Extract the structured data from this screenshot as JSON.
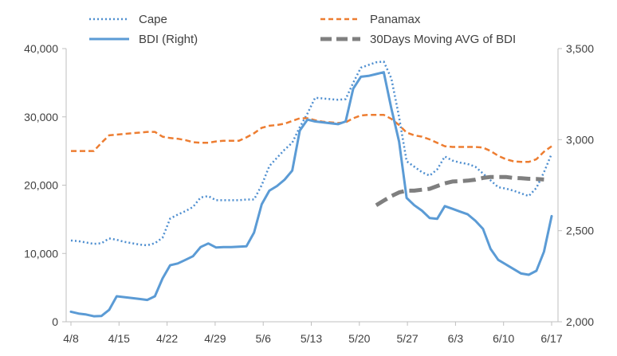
{
  "chart_data": {
    "type": "line",
    "title": "",
    "x_ticks": [
      "4/8",
      "4/15",
      "4/22",
      "4/29",
      "5/6",
      "5/13",
      "5/20",
      "5/27",
      "6/3",
      "6/10",
      "6/17"
    ],
    "y_left": {
      "min": 0,
      "max": 40000,
      "ticks": [
        "0",
        "10,000",
        "20,000",
        "30,000",
        "40,000"
      ]
    },
    "y_right": {
      "min": 2000,
      "max": 3500,
      "ticks": [
        "2,000",
        "2,500",
        "3,000",
        "3,500"
      ]
    },
    "grid": false,
    "legend_position": "top",
    "series": [
      {
        "name": "Cape",
        "axis": "left",
        "style": "dotted",
        "color": "#4f8fd0",
        "points": [
          [
            0,
            11900
          ],
          [
            1,
            11800
          ],
          [
            2,
            11600
          ],
          [
            3,
            11400
          ],
          [
            4,
            11500
          ],
          [
            5,
            12200
          ],
          [
            6,
            12000
          ],
          [
            7,
            11700
          ],
          [
            8,
            11500
          ],
          [
            9,
            11300
          ],
          [
            10,
            11200
          ],
          [
            11,
            11500
          ],
          [
            12,
            12300
          ],
          [
            13,
            15100
          ],
          [
            14,
            15700
          ],
          [
            15,
            16200
          ],
          [
            16,
            16800
          ],
          [
            17,
            18200
          ],
          [
            18,
            18400
          ],
          [
            19,
            17800
          ],
          [
            20,
            17800
          ],
          [
            21,
            17800
          ],
          [
            22,
            17800
          ],
          [
            23,
            17900
          ],
          [
            24,
            17900
          ],
          [
            25,
            20000
          ],
          [
            26,
            22800
          ],
          [
            27,
            24000
          ],
          [
            28,
            25200
          ],
          [
            29,
            26200
          ],
          [
            30,
            28500
          ],
          [
            31,
            30500
          ],
          [
            32,
            32800
          ],
          [
            33,
            32700
          ],
          [
            34,
            32600
          ],
          [
            35,
            32500
          ],
          [
            36,
            32600
          ],
          [
            37,
            35000
          ],
          [
            38,
            37200
          ],
          [
            39,
            37600
          ],
          [
            40,
            38000
          ],
          [
            41,
            38100
          ],
          [
            42,
            35600
          ],
          [
            43,
            30000
          ],
          [
            44,
            23500
          ],
          [
            45,
            22700
          ],
          [
            46,
            21900
          ],
          [
            47,
            21400
          ],
          [
            48,
            22300
          ],
          [
            49,
            24200
          ],
          [
            50,
            23600
          ],
          [
            51,
            23300
          ],
          [
            52,
            23100
          ],
          [
            53,
            22700
          ],
          [
            54,
            21700
          ],
          [
            55,
            20700
          ],
          [
            56,
            19700
          ],
          [
            57,
            19500
          ],
          [
            58,
            19200
          ],
          [
            59,
            18800
          ],
          [
            60,
            18400
          ],
          [
            61,
            19600
          ],
          [
            62,
            21900
          ],
          [
            63,
            24600
          ]
        ]
      },
      {
        "name": "Panamax",
        "axis": "left",
        "style": "dashed",
        "color": "#ed7d31",
        "points": [
          [
            0,
            25000
          ],
          [
            1,
            25000
          ],
          [
            2,
            25000
          ],
          [
            3,
            25000
          ],
          [
            4,
            26200
          ],
          [
            5,
            27300
          ],
          [
            6,
            27400
          ],
          [
            7,
            27500
          ],
          [
            8,
            27600
          ],
          [
            9,
            27700
          ],
          [
            10,
            27800
          ],
          [
            11,
            27800
          ],
          [
            12,
            27100
          ],
          [
            13,
            26900
          ],
          [
            14,
            26800
          ],
          [
            15,
            26600
          ],
          [
            16,
            26300
          ],
          [
            17,
            26200
          ],
          [
            18,
            26200
          ],
          [
            19,
            26400
          ],
          [
            20,
            26500
          ],
          [
            21,
            26500
          ],
          [
            22,
            26500
          ],
          [
            23,
            27000
          ],
          [
            24,
            27600
          ],
          [
            25,
            28400
          ],
          [
            26,
            28700
          ],
          [
            27,
            28800
          ],
          [
            28,
            29000
          ],
          [
            29,
            29400
          ],
          [
            30,
            29800
          ],
          [
            31,
            29800
          ],
          [
            32,
            29500
          ],
          [
            33,
            29300
          ],
          [
            34,
            29200
          ],
          [
            35,
            29100
          ],
          [
            36,
            29200
          ],
          [
            37,
            29800
          ],
          [
            38,
            30200
          ],
          [
            39,
            30300
          ],
          [
            40,
            30300
          ],
          [
            41,
            30300
          ],
          [
            42,
            29700
          ],
          [
            43,
            28800
          ],
          [
            44,
            27700
          ],
          [
            45,
            27300
          ],
          [
            46,
            27100
          ],
          [
            47,
            26700
          ],
          [
            48,
            26200
          ],
          [
            49,
            25700
          ],
          [
            50,
            25600
          ],
          [
            51,
            25600
          ],
          [
            52,
            25600
          ],
          [
            53,
            25600
          ],
          [
            54,
            25500
          ],
          [
            55,
            25000
          ],
          [
            56,
            24300
          ],
          [
            57,
            23800
          ],
          [
            58,
            23500
          ],
          [
            59,
            23400
          ],
          [
            60,
            23400
          ],
          [
            61,
            23800
          ],
          [
            62,
            24900
          ],
          [
            63,
            25700
          ]
        ]
      },
      {
        "name": "BDI (Right)",
        "axis": "right",
        "style": "solid",
        "color": "#5b9bd5",
        "points": [
          [
            0,
            2055
          ],
          [
            1,
            2045
          ],
          [
            2,
            2040
          ],
          [
            3,
            2030
          ],
          [
            4,
            2032
          ],
          [
            5,
            2065
          ],
          [
            6,
            2140
          ],
          [
            7,
            2135
          ],
          [
            8,
            2130
          ],
          [
            9,
            2125
          ],
          [
            10,
            2120
          ],
          [
            11,
            2140
          ],
          [
            12,
            2238
          ],
          [
            13,
            2310
          ],
          [
            14,
            2320
          ],
          [
            15,
            2340
          ],
          [
            16,
            2360
          ],
          [
            17,
            2410
          ],
          [
            18,
            2430
          ],
          [
            19,
            2408
          ],
          [
            20,
            2410
          ],
          [
            21,
            2410
          ],
          [
            22,
            2412
          ],
          [
            23,
            2414
          ],
          [
            24,
            2490
          ],
          [
            25,
            2645
          ],
          [
            26,
            2720
          ],
          [
            27,
            2745
          ],
          [
            28,
            2780
          ],
          [
            29,
            2830
          ],
          [
            30,
            3050
          ],
          [
            31,
            3110
          ],
          [
            32,
            3100
          ],
          [
            33,
            3095
          ],
          [
            34,
            3090
          ],
          [
            35,
            3085
          ],
          [
            36,
            3100
          ],
          [
            37,
            3280
          ],
          [
            38,
            3345
          ],
          [
            39,
            3350
          ],
          [
            40,
            3360
          ],
          [
            41,
            3370
          ],
          [
            42,
            3170
          ],
          [
            43,
            2990
          ],
          [
            44,
            2680
          ],
          [
            45,
            2640
          ],
          [
            46,
            2610
          ],
          [
            47,
            2570
          ],
          [
            48,
            2565
          ],
          [
            49,
            2635
          ],
          [
            50,
            2620
          ],
          [
            51,
            2605
          ],
          [
            52,
            2590
          ],
          [
            53,
            2555
          ],
          [
            54,
            2510
          ],
          [
            55,
            2400
          ],
          [
            56,
            2340
          ],
          [
            57,
            2315
          ],
          [
            58,
            2290
          ],
          [
            59,
            2265
          ],
          [
            60,
            2258
          ],
          [
            61,
            2280
          ],
          [
            62,
            2385
          ],
          [
            63,
            2580
          ]
        ]
      },
      {
        "name": "30Days Moving AVG of BDI",
        "axis": "right",
        "style": "long-dash",
        "color": "#7f7f7f",
        "points": [
          [
            40,
            2640
          ],
          [
            41,
            2665
          ],
          [
            42,
            2690
          ],
          [
            43,
            2710
          ],
          [
            44,
            2720
          ],
          [
            45,
            2720
          ],
          [
            46,
            2725
          ],
          [
            47,
            2730
          ],
          [
            48,
            2745
          ],
          [
            49,
            2760
          ],
          [
            50,
            2770
          ],
          [
            51,
            2772
          ],
          [
            52,
            2775
          ],
          [
            53,
            2780
          ],
          [
            54,
            2790
          ],
          [
            55,
            2795
          ],
          [
            56,
            2795
          ],
          [
            57,
            2795
          ],
          [
            58,
            2790
          ],
          [
            59,
            2788
          ],
          [
            60,
            2785
          ],
          [
            61,
            2784
          ],
          [
            62,
            2781
          ]
        ]
      }
    ]
  }
}
